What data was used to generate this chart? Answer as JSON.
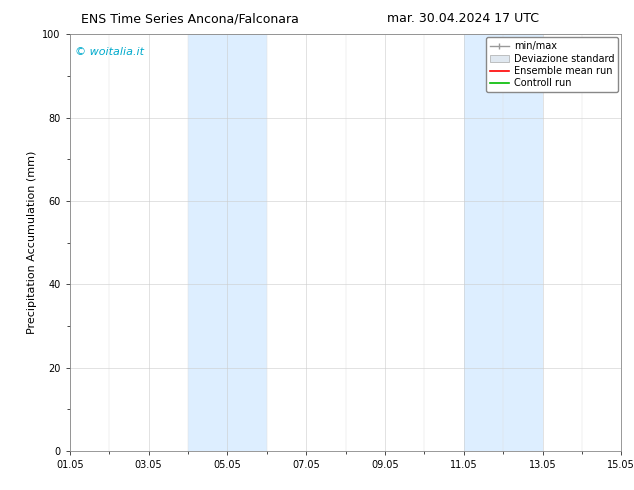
{
  "title_left": "ENS Time Series Ancona/Falconara",
  "title_right": "mar. 30.04.2024 17 UTC",
  "ylabel": "Precipitation Accumulation (mm)",
  "ylim": [
    0,
    100
  ],
  "yticks": [
    0,
    20,
    40,
    60,
    80,
    100
  ],
  "xtick_labels": [
    "01.05",
    "03.05",
    "05.05",
    "07.05",
    "09.05",
    "11.05",
    "13.05",
    "15.05"
  ],
  "xtick_positions": [
    0,
    2,
    4,
    6,
    8,
    10,
    12,
    14
  ],
  "xlim_start": 0,
  "xlim_end": 14,
  "shaded_bands": [
    {
      "x_start": 3.0,
      "x_end": 5.0,
      "color": "#ddeeff"
    },
    {
      "x_start": 10.0,
      "x_end": 12.0,
      "color": "#ddeeff"
    }
  ],
  "watermark_text": "© woitalia.it",
  "watermark_color": "#00aacc",
  "legend_labels": [
    "min/max",
    "Deviazione standard",
    "Ensemble mean run",
    "Controll run"
  ],
  "legend_line_colors": [
    "#999999",
    "#cccccc",
    "#ff0000",
    "#00bb00"
  ],
  "background_color": "#ffffff",
  "plot_bg_color": "#ffffff",
  "title_fontsize": 9,
  "axis_label_fontsize": 8,
  "tick_fontsize": 7,
  "legend_fontsize": 7,
  "watermark_fontsize": 8
}
